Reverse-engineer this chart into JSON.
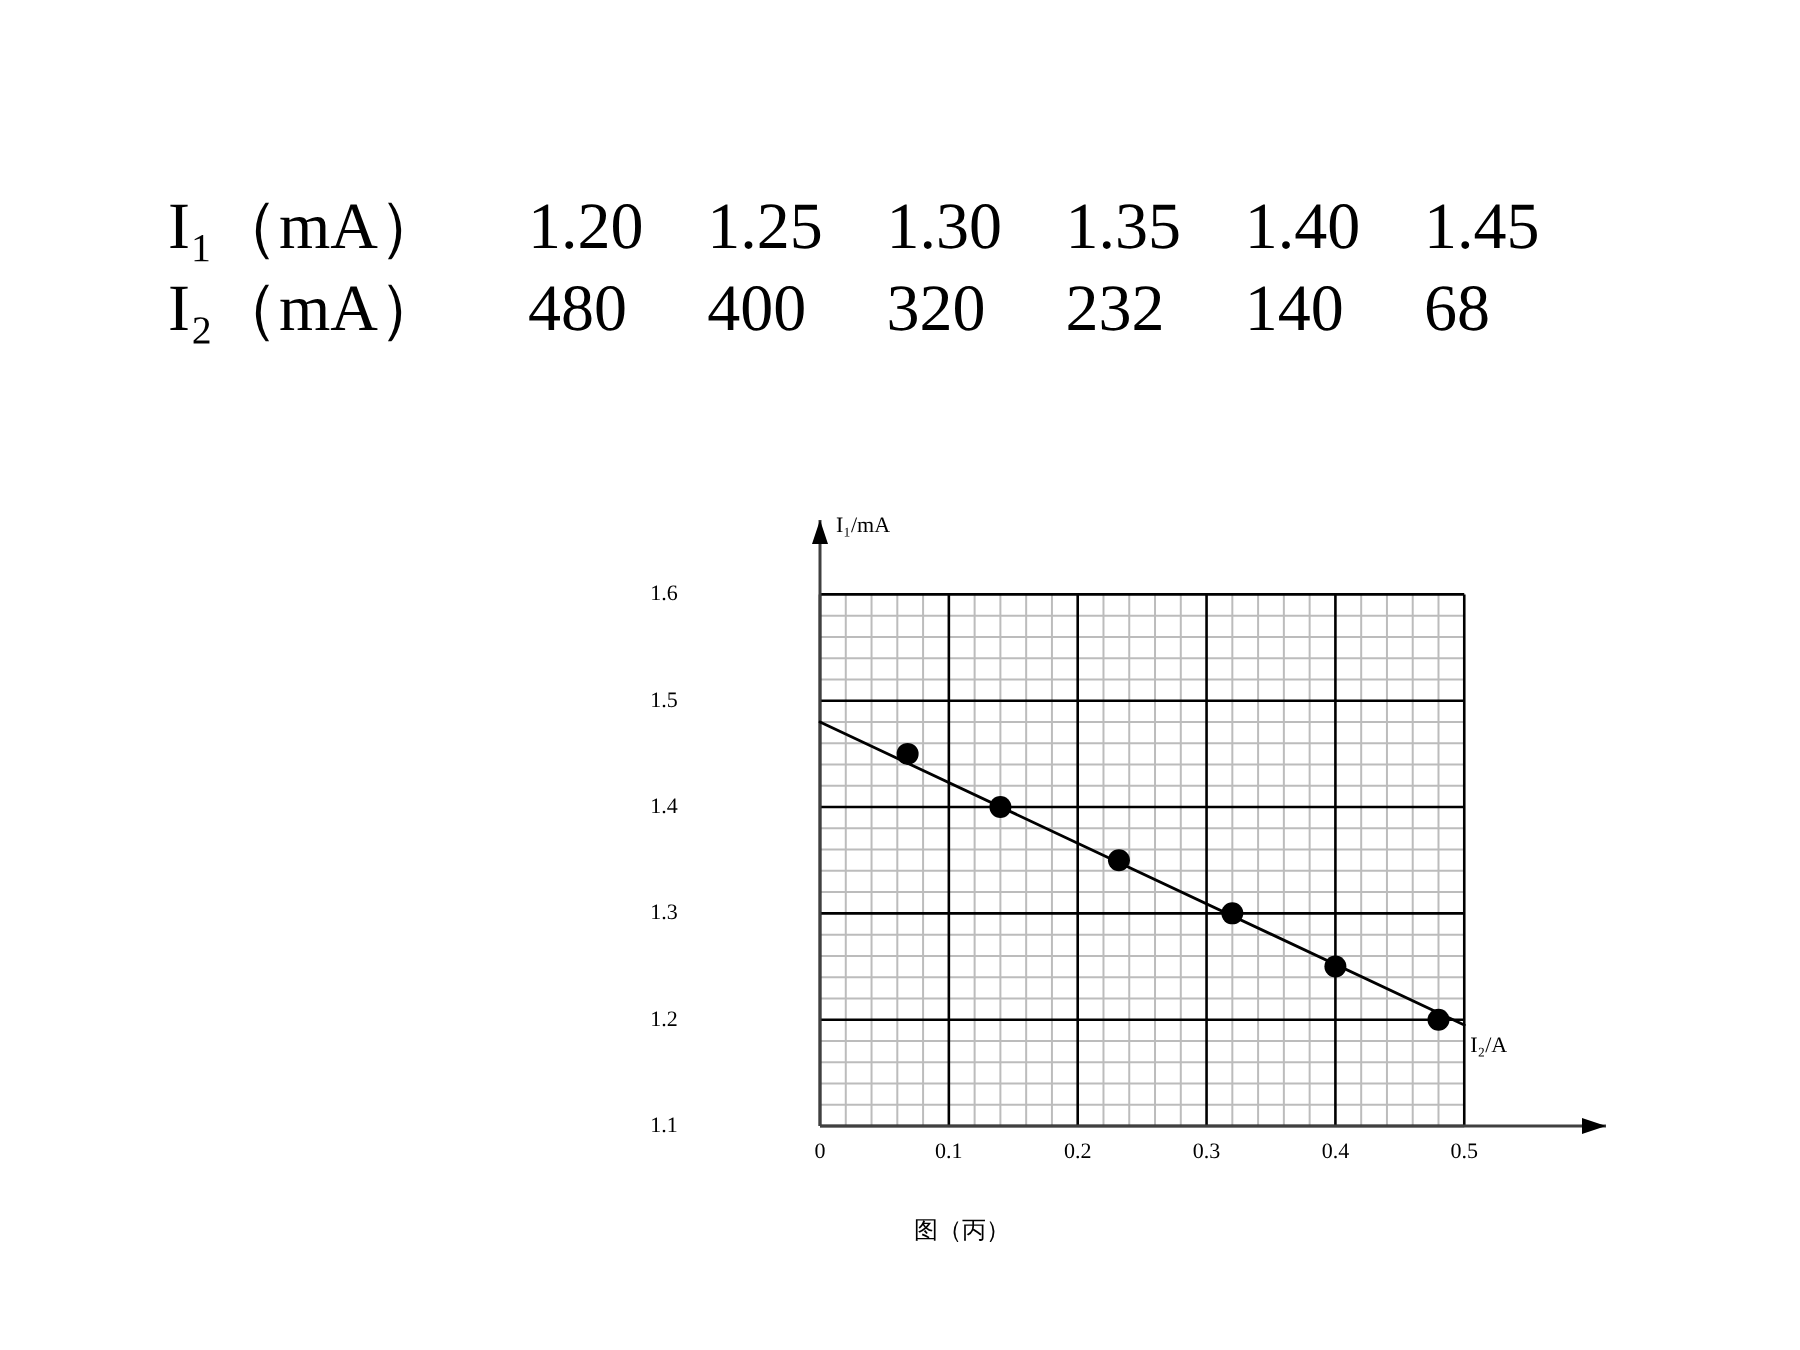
{
  "chart_data": {
    "type": "scatter",
    "xlabel": "I₂/A",
    "ylabel": "I₁/mA",
    "annotations": [
      "I₁（mA） 1.20 1.25 1.30 1.35 1.40 1.45",
      "I₂（mA） 480 400 320 232 140 68",
      "图（丙）"
    ],
    "xlim": [
      0,
      0.61
    ],
    "ylim": [
      1.1,
      1.67
    ],
    "xticks": [
      0,
      {
        "value": 0.02,
        "label": null
      },
      {
        "value": 0.04,
        "label": null
      },
      {
        "value": 0.06,
        "label": null
      },
      {
        "value": 0.08,
        "label": null
      },
      0.1,
      {
        "value": 0.12,
        "label": null
      },
      {
        "value": 0.14,
        "label": null
      },
      {
        "value": 0.16,
        "label": null
      },
      {
        "value": 0.18,
        "label": null
      },
      0.2,
      {
        "value": 0.22,
        "label": null
      },
      {
        "value": 0.24,
        "label": null
      },
      {
        "value": 0.26,
        "label": null
      },
      {
        "value": 0.28,
        "label": null
      },
      0.3,
      {
        "value": 0.32,
        "label": null
      },
      {
        "value": 0.34,
        "label": null
      },
      {
        "value": 0.36,
        "label": null
      },
      {
        "value": 0.38,
        "label": null
      },
      0.4,
      {
        "value": 0.42,
        "label": null
      },
      {
        "value": 0.44,
        "label": null
      },
      {
        "value": 0.46,
        "label": null
      },
      {
        "value": 0.48,
        "label": null
      },
      0.5
    ],
    "yticks": [
      1.1,
      {
        "value": 1.12,
        "label": null
      },
      {
        "value": 1.14,
        "label": null
      },
      {
        "value": 1.16,
        "label": null
      },
      {
        "value": 1.18,
        "label": null
      },
      1.2,
      {
        "value": 1.22,
        "label": null
      },
      {
        "value": 1.24,
        "label": null
      },
      {
        "value": 1.26,
        "label": null
      },
      {
        "value": 1.28,
        "label": null
      },
      1.3,
      {
        "value": 1.32,
        "label": null
      },
      {
        "value": 1.34,
        "label": null
      },
      {
        "value": 1.36,
        "label": null
      },
      {
        "value": 1.38,
        "label": null
      },
      1.4,
      {
        "value": 1.42,
        "label": null
      },
      {
        "value": 1.44,
        "label": null
      },
      {
        "value": 1.46,
        "label": null
      },
      {
        "value": 1.48,
        "label": null
      },
      1.5,
      {
        "value": 1.52,
        "label": null
      },
      {
        "value": 1.54,
        "label": null
      },
      {
        "value": 1.56,
        "label": null
      },
      {
        "value": 1.58,
        "label": null
      },
      1.6
    ],
    "grid": true,
    "series": [
      {
        "type": "line",
        "x": [
          0,
          0.5
        ],
        "values": [
          1.48,
          1.195
        ],
        "color": "#000000",
        "line_style": "solid"
      },
      {
        "x": [
          0.48,
          0.4,
          0.32,
          0.232,
          0.14,
          0.068
        ],
        "values": [
          1.2,
          1.25,
          1.3,
          1.35,
          1.4,
          1.45
        ],
        "color": "#000000",
        "marker": "circle"
      }
    ]
  }
}
